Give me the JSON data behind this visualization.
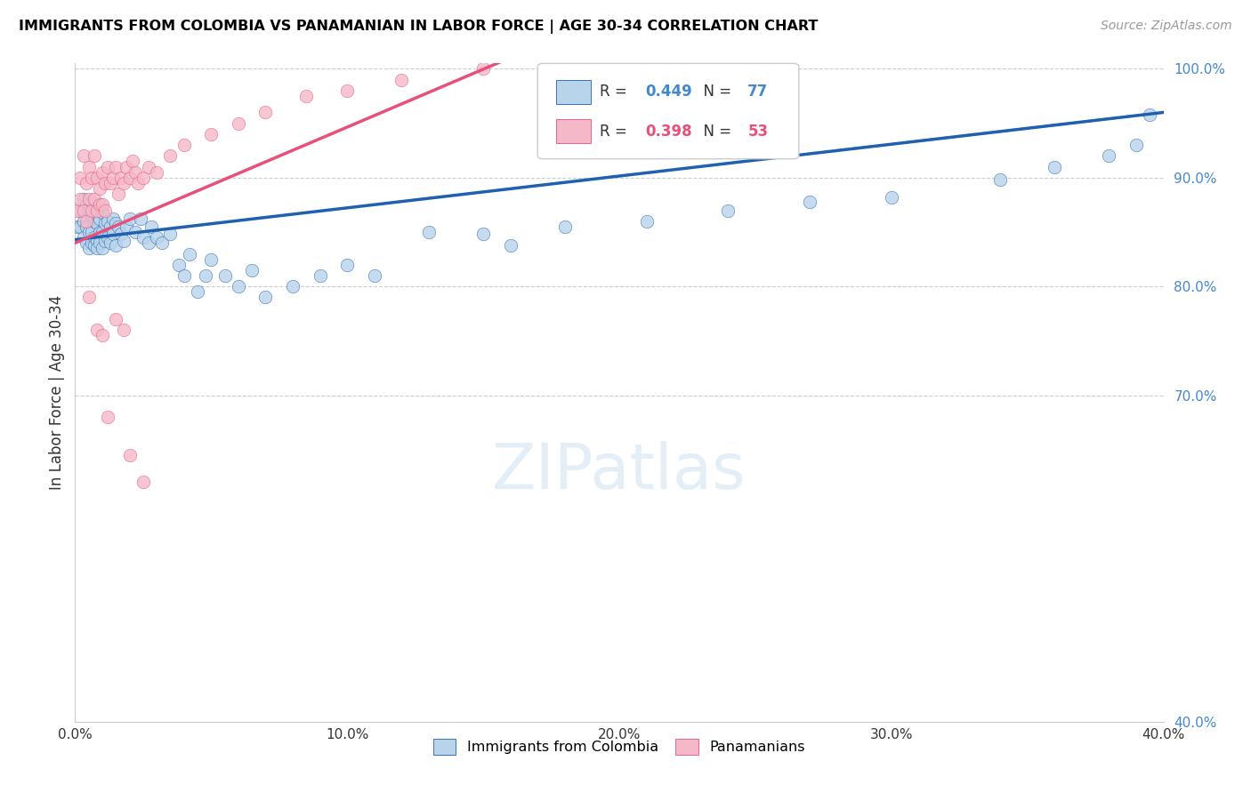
{
  "title": "IMMIGRANTS FROM COLOMBIA VS PANAMANIAN IN LABOR FORCE | AGE 30-34 CORRELATION CHART",
  "source": "Source: ZipAtlas.com",
  "ylabel": "In Labor Force | Age 30-34",
  "r_colombia": 0.449,
  "n_colombia": 77,
  "r_panama": 0.398,
  "n_panama": 53,
  "colombia_color": "#b8d4ea",
  "panama_color": "#f4b8c8",
  "trend_colombia_color": "#2060b0",
  "trend_panama_color": "#e8507a",
  "xmin": 0.0,
  "xmax": 0.4,
  "ymin": 0.4,
  "ymax": 1.005,
  "yticks": [
    0.4,
    0.7,
    0.8,
    0.9,
    1.0
  ],
  "xticks": [
    0.0,
    0.1,
    0.2,
    0.3,
    0.4
  ],
  "legend_labels": [
    "Immigrants from Colombia",
    "Panamanians"
  ],
  "colombia_x": [
    0.001,
    0.002,
    0.002,
    0.003,
    0.003,
    0.003,
    0.004,
    0.004,
    0.004,
    0.005,
    0.005,
    0.005,
    0.006,
    0.006,
    0.006,
    0.007,
    0.007,
    0.007,
    0.008,
    0.008,
    0.008,
    0.009,
    0.009,
    0.009,
    0.01,
    0.01,
    0.01,
    0.011,
    0.011,
    0.012,
    0.012,
    0.013,
    0.013,
    0.014,
    0.014,
    0.015,
    0.015,
    0.016,
    0.017,
    0.018,
    0.019,
    0.02,
    0.022,
    0.024,
    0.025,
    0.027,
    0.028,
    0.03,
    0.032,
    0.035,
    0.038,
    0.04,
    0.042,
    0.045,
    0.048,
    0.05,
    0.055,
    0.06,
    0.065,
    0.07,
    0.08,
    0.09,
    0.1,
    0.11,
    0.13,
    0.15,
    0.16,
    0.18,
    0.21,
    0.24,
    0.27,
    0.3,
    0.34,
    0.36,
    0.38,
    0.39,
    0.395
  ],
  "colombia_y": [
    0.855,
    0.87,
    0.855,
    0.88,
    0.86,
    0.845,
    0.875,
    0.855,
    0.84,
    0.87,
    0.85,
    0.835,
    0.865,
    0.85,
    0.84,
    0.86,
    0.845,
    0.838,
    0.858,
    0.842,
    0.835,
    0.862,
    0.85,
    0.84,
    0.868,
    0.85,
    0.835,
    0.858,
    0.842,
    0.86,
    0.845,
    0.855,
    0.84,
    0.862,
    0.848,
    0.858,
    0.838,
    0.855,
    0.848,
    0.842,
    0.855,
    0.862,
    0.85,
    0.862,
    0.845,
    0.84,
    0.855,
    0.845,
    0.84,
    0.848,
    0.82,
    0.81,
    0.83,
    0.795,
    0.81,
    0.825,
    0.81,
    0.8,
    0.815,
    0.79,
    0.8,
    0.81,
    0.82,
    0.81,
    0.85,
    0.848,
    0.838,
    0.855,
    0.86,
    0.87,
    0.878,
    0.882,
    0.898,
    0.91,
    0.92,
    0.93,
    0.958
  ],
  "panama_x": [
    0.001,
    0.002,
    0.002,
    0.003,
    0.003,
    0.004,
    0.004,
    0.005,
    0.005,
    0.006,
    0.006,
    0.007,
    0.007,
    0.008,
    0.008,
    0.009,
    0.009,
    0.01,
    0.01,
    0.011,
    0.011,
    0.012,
    0.013,
    0.014,
    0.015,
    0.016,
    0.017,
    0.018,
    0.019,
    0.02,
    0.021,
    0.022,
    0.023,
    0.025,
    0.027,
    0.03,
    0.035,
    0.04,
    0.05,
    0.06,
    0.07,
    0.085,
    0.1,
    0.12,
    0.15,
    0.005,
    0.008,
    0.01,
    0.015,
    0.018,
    0.012,
    0.02,
    0.025
  ],
  "panama_y": [
    0.87,
    0.9,
    0.88,
    0.92,
    0.87,
    0.895,
    0.86,
    0.91,
    0.88,
    0.9,
    0.87,
    0.92,
    0.88,
    0.9,
    0.87,
    0.89,
    0.875,
    0.905,
    0.875,
    0.895,
    0.87,
    0.91,
    0.895,
    0.9,
    0.91,
    0.885,
    0.9,
    0.895,
    0.91,
    0.9,
    0.915,
    0.905,
    0.895,
    0.9,
    0.91,
    0.905,
    0.92,
    0.93,
    0.94,
    0.95,
    0.96,
    0.975,
    0.98,
    0.99,
    1.0,
    0.79,
    0.76,
    0.755,
    0.77,
    0.76,
    0.68,
    0.645,
    0.62
  ]
}
